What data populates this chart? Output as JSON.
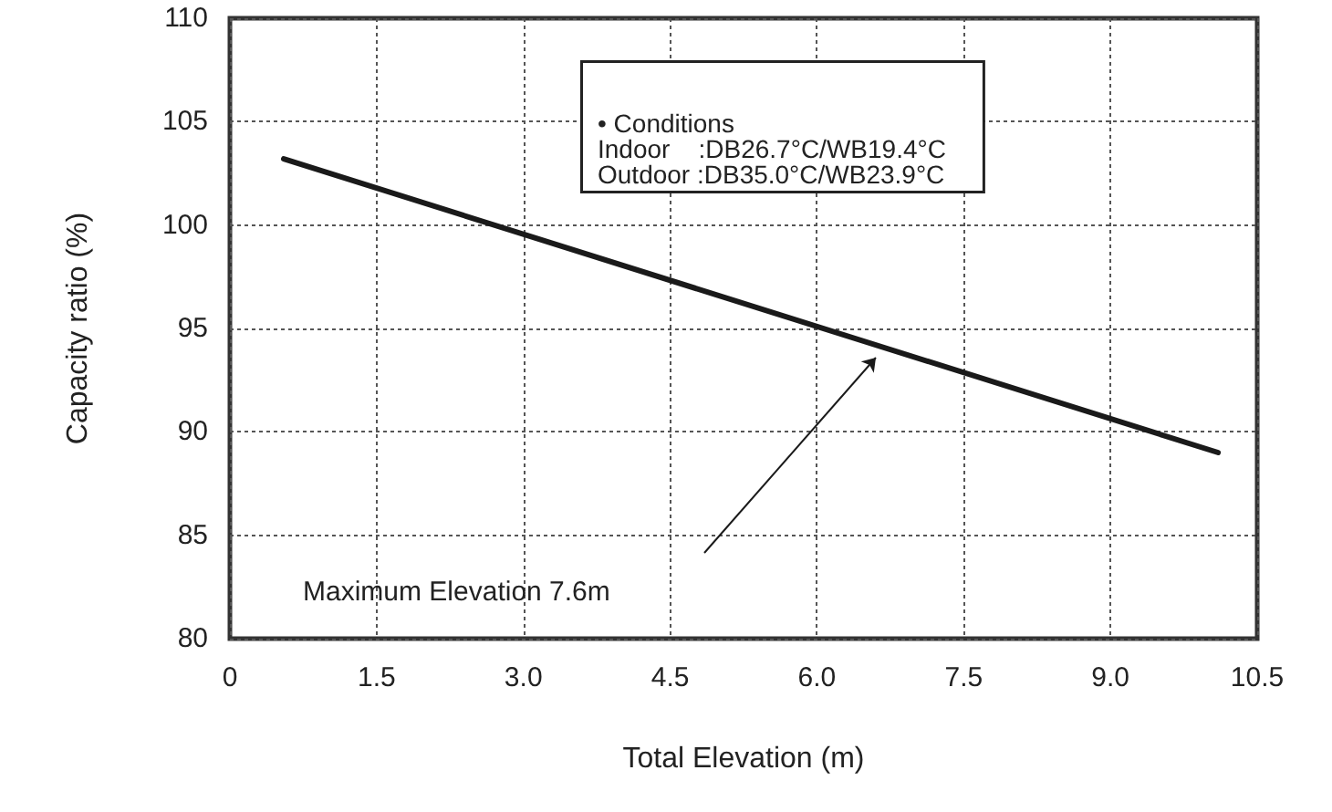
{
  "chart_data": {
    "type": "line",
    "xlabel": "Total Elevation (m)",
    "ylabel": "Capacity ratio (%)",
    "x": [
      0.55,
      10.1
    ],
    "series": [
      {
        "color": "#1a1a1a",
        "values": [
          103.2,
          89.0
        ]
      }
    ],
    "xlim": [
      0,
      10.5
    ],
    "xticks": [
      0,
      1.5,
      {
        "value": 3,
        "label": "3.0"
      },
      4.5,
      {
        "value": 6,
        "label": "6.0"
      },
      7.5,
      {
        "value": 9,
        "label": "9.0"
      },
      10.5
    ],
    "ylim": [
      80,
      110
    ],
    "yticks": [
      80,
      85,
      90,
      95,
      100,
      105,
      110
    ],
    "grid": true,
    "marker": "none",
    "line_style": "solid",
    "annotations": [
      "• Conditions\nIndoor    :DB26.7°C/WB19.4°C\nOutdoor :DB35.0°C/WB23.9°C",
      "Maximum Elevation 7.6m"
    ]
  }
}
